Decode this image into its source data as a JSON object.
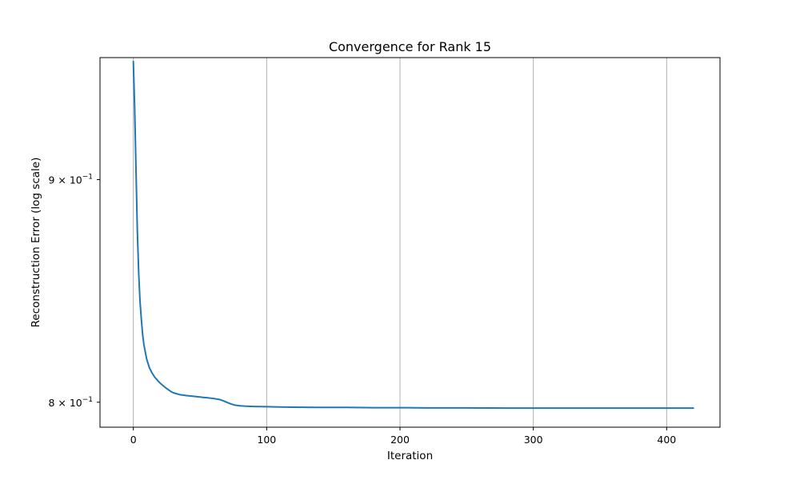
{
  "chart_data": {
    "type": "line",
    "title": "Convergence for Rank 15",
    "xlabel": "Iteration",
    "ylabel": "Reconstruction Error (log scale)",
    "yscale": "log",
    "xlim": [
      -25,
      440
    ],
    "ylim": [
      0.7895,
      0.96
    ],
    "grid": "x-axis only",
    "line_color": "#1f77b4",
    "grid_color": "#b0b0b0",
    "x_ticks": [
      {
        "value": 0,
        "label": "0"
      },
      {
        "value": 100,
        "label": "100"
      },
      {
        "value": 200,
        "label": "200"
      },
      {
        "value": 300,
        "label": "300"
      },
      {
        "value": 400,
        "label": "400"
      }
    ],
    "y_ticks": [
      {
        "value": 0.8,
        "mantissa": "8",
        "base": "10",
        "exponent": "−1"
      },
      {
        "value": 0.9,
        "mantissa": "9",
        "base": "10",
        "exponent": "−1"
      }
    ],
    "series": [
      {
        "x": [
          0,
          1,
          2,
          3,
          4,
          5,
          6,
          7,
          8,
          10,
          12,
          14,
          16,
          18,
          20,
          22,
          25,
          28,
          30,
          35,
          40,
          45,
          50,
          55,
          60,
          65,
          68,
          70,
          73,
          76,
          80,
          85,
          90,
          100,
          110,
          120,
          140,
          160,
          180,
          200,
          220,
          250,
          280,
          300,
          320,
          350,
          380,
          400,
          420
        ],
        "y": [
          0.958,
          0.935,
          0.905,
          0.876,
          0.857,
          0.844,
          0.836,
          0.829,
          0.8245,
          0.8185,
          0.8148,
          0.8125,
          0.8107,
          0.8094,
          0.8082,
          0.8072,
          0.8058,
          0.8046,
          0.804,
          0.8032,
          0.8028,
          0.8025,
          0.8022,
          0.8019,
          0.8016,
          0.8011,
          0.8005,
          0.8,
          0.7993,
          0.7988,
          0.7985,
          0.7983,
          0.7982,
          0.7981,
          0.798,
          0.7979,
          0.7978,
          0.7978,
          0.7977,
          0.7977,
          0.7976,
          0.7976,
          0.7975,
          0.7975,
          0.7975,
          0.7975,
          0.7975,
          0.7975,
          0.7975
        ]
      }
    ]
  }
}
